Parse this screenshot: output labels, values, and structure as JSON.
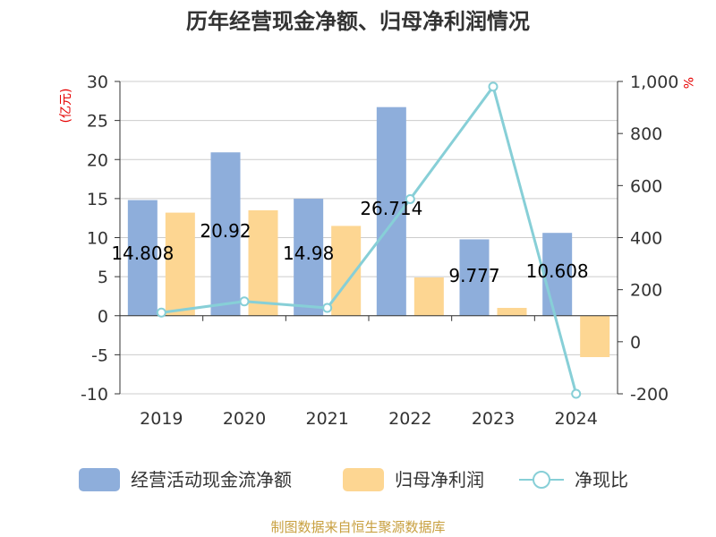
{
  "chart_data": {
    "type": "bar",
    "title": "历年经营现金净额、归母净利润情况",
    "categories": [
      "2019",
      "2020",
      "2021",
      "2022",
      "2023",
      "2024"
    ],
    "series": [
      {
        "name": "经营活动现金流净额",
        "type": "bar",
        "axis": "left",
        "color": "#8eaedb",
        "values": [
          14.808,
          20.92,
          14.98,
          26.714,
          9.777,
          10.608
        ],
        "labels": [
          "14.808",
          "20.92",
          "14.98",
          "26.714",
          "9.777",
          "10.608"
        ]
      },
      {
        "name": "归母净利润",
        "type": "bar",
        "axis": "left",
        "color": "#fdd692",
        "values": [
          13.2,
          13.5,
          11.5,
          4.9,
          1.0,
          -5.3
        ]
      },
      {
        "name": "净现比",
        "type": "line",
        "axis": "right",
        "color": "#87cfd7",
        "values": [
          112,
          155,
          130,
          548,
          980,
          -200
        ]
      }
    ],
    "left_axis": {
      "unit": "(亿元)",
      "ylim": [
        -10,
        30
      ],
      "ticks": [
        {
          "v": 30,
          "t": "30"
        },
        {
          "v": 25,
          "t": "25"
        },
        {
          "v": 20,
          "t": "20"
        },
        {
          "v": 15,
          "t": "15"
        },
        {
          "v": 10,
          "t": "10"
        },
        {
          "v": 5,
          "t": "5"
        },
        {
          "v": 0,
          "t": "0"
        },
        {
          "v": -5,
          "t": "-5"
        },
        {
          "v": -10,
          "t": "-10"
        }
      ]
    },
    "right_axis": {
      "unit": "%",
      "ylim": [
        -200,
        1000
      ],
      "ticks": [
        {
          "v": 1000,
          "t": "1,000"
        },
        {
          "v": 800,
          "t": "800"
        },
        {
          "v": 600,
          "t": "600"
        },
        {
          "v": 400,
          "t": "400"
        },
        {
          "v": 200,
          "t": "200"
        },
        {
          "v": 0,
          "t": "0"
        },
        {
          "v": -200,
          "t": "-200"
        }
      ]
    },
    "grid": true,
    "legend_position": "bottom"
  },
  "source": "制图数据来自恒生聚源数据库"
}
